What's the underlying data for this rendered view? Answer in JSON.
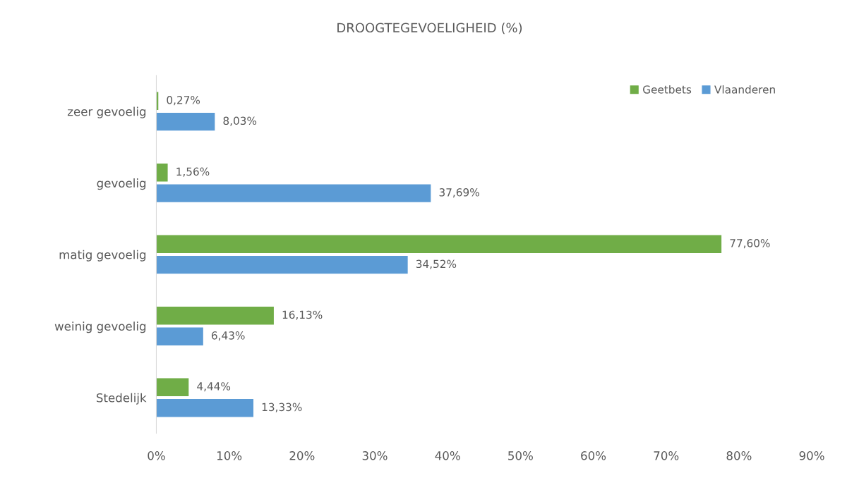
{
  "chart_data": {
    "type": "bar",
    "orientation": "horizontal",
    "title": "DROOGTEGEVOELIGHEID (%)",
    "categories": [
      "zeer gevoelig",
      "gevoelig",
      "matig gevoelig",
      "weinig gevoelig",
      "Stedelijk"
    ],
    "series": [
      {
        "name": "Geetbets",
        "color": "#70ad47",
        "values": [
          0.27,
          1.56,
          77.6,
          16.13,
          4.44
        ],
        "value_labels": [
          "0,27%",
          "1,56%",
          "77,60%",
          "16,13%",
          "4,44%"
        ]
      },
      {
        "name": "Vlaanderen",
        "color": "#5b9bd5",
        "values": [
          8.03,
          37.69,
          34.52,
          6.43,
          13.33
        ],
        "value_labels": [
          "8,03%",
          "37,69%",
          "34,52%",
          "6,43%",
          "13,33%"
        ]
      }
    ],
    "xlim": [
      0,
      90
    ],
    "xticks": [
      {
        "value": 0,
        "label": "0%"
      },
      {
        "value": 10,
        "label": "10%"
      },
      {
        "value": 20,
        "label": "20%"
      },
      {
        "value": 30,
        "label": "30%"
      },
      {
        "value": 40,
        "label": "40%"
      },
      {
        "value": 50,
        "label": "50%"
      },
      {
        "value": 60,
        "label": "60%"
      },
      {
        "value": 70,
        "label": "70%"
      },
      {
        "value": 80,
        "label": "80%"
      },
      {
        "value": 90,
        "label": "90%"
      }
    ],
    "legend": "top right",
    "grid": false
  }
}
